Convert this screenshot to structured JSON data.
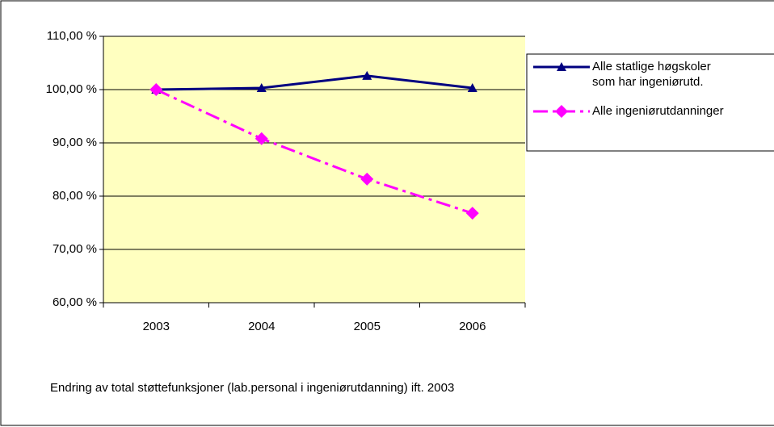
{
  "chart_data": {
    "type": "line",
    "categories": [
      "2003",
      "2004",
      "2005",
      "2006"
    ],
    "series": [
      {
        "name": "Alle statlige høgskoler som har ingeniørutd.",
        "color": "#000080",
        "marker": "triangle",
        "dash": "solid",
        "values": [
          100,
          100.3,
          102.6,
          100.3
        ]
      },
      {
        "name": "Alle ingeniørutdanninger",
        "color": "#ff00ff",
        "marker": "diamond",
        "dash": "dashdot",
        "values": [
          100,
          90.8,
          83.2,
          76.8
        ]
      }
    ],
    "ylim": [
      60,
      110
    ],
    "yticks": [
      {
        "value": 60,
        "label": "60,00 %"
      },
      {
        "value": 70,
        "label": "70,00 %"
      },
      {
        "value": 80,
        "label": "80,00 %"
      },
      {
        "value": 90,
        "label": "90,00 %"
      },
      {
        "value": 100,
        "label": "100,00 %"
      },
      {
        "value": 110,
        "label": "110,00 %"
      }
    ],
    "grid": true,
    "plot_background": "#ffffc0",
    "legend": "right",
    "annotation": "Endring av total støttefunksjoner (lab.personal i ingeniørutdanning) ift. 2003"
  }
}
